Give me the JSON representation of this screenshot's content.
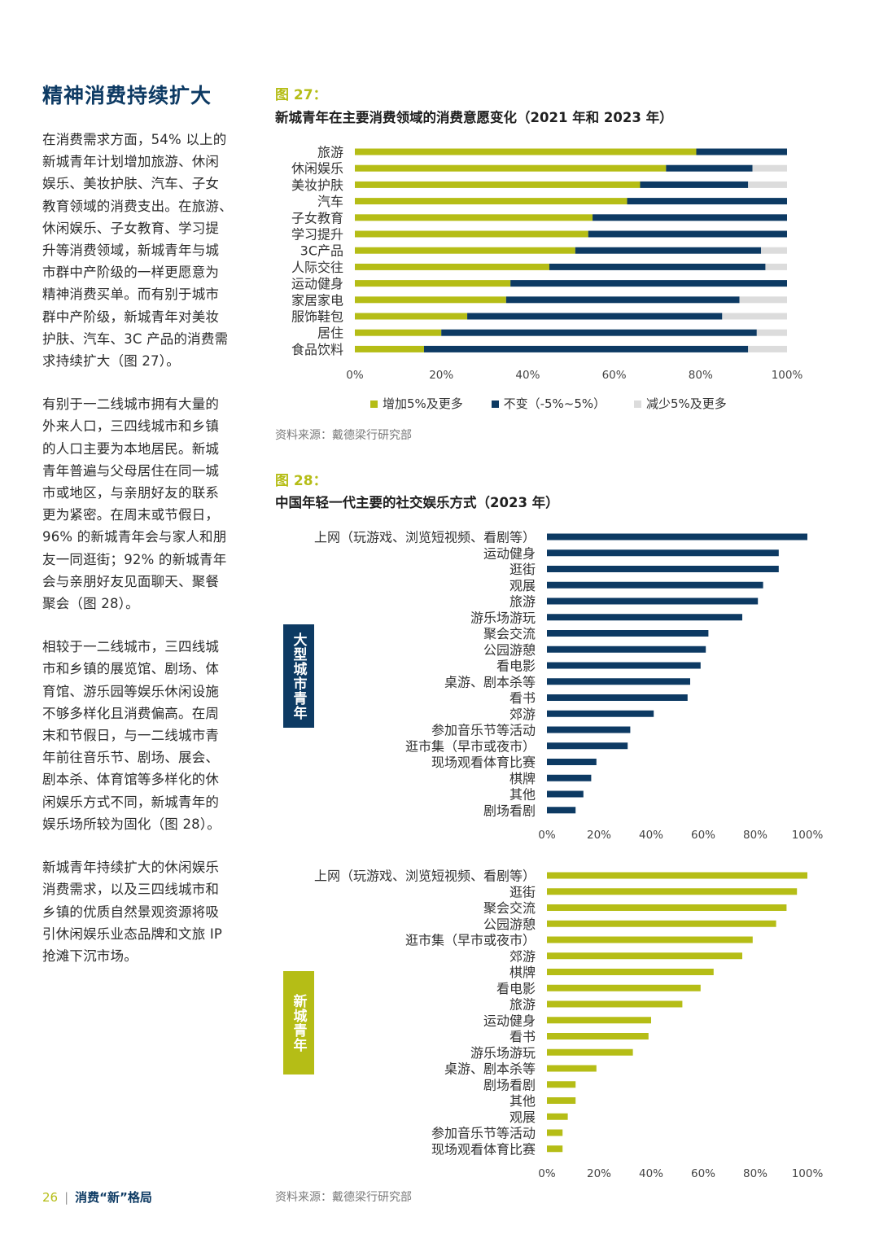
{
  "section_title": "精神消费持续扩大",
  "paragraphs": [
    "在消费需求方面，54% 以上的\n新城青年计划增加旅游、休闲\n娱乐、美妆护肤、汽车、子女\n教育领域的消费支出。在旅游、\n休闲娱乐、子女教育、学习提\n升等消费领域，新城青年与城\n市群中产阶级的一样更愿意为\n精神消费买单。而有别于城市\n群中产阶级，新城青年对美妆\n护肤、汽车、3C 产品的消费需\n求持续扩大（图 27）。",
    "有别于一二线城市拥有大量的\n外来人口，三四线城市和乡镇\n的人口主要为本地居民。新城\n青年普遍与父母居住在同一城\n市或地区，与亲朋好友的联系\n更为紧密。在周末或节假日，\n96% 的新城青年会与家人和朋\n友一同逛街；92% 的新城青年\n会与亲朋好友见面聊天、聚餐\n聚会（图 28）。",
    "相较于一二线城市，三四线城\n市和乡镇的展览馆、剧场、体\n育馆、游乐园等娱乐休闲设施\n不够多样化且消费偏高。在周\n末和节假日，与一二线城市青\n年前往音乐节、剧场、展会、\n剧本杀、体育馆等多样化的休\n闲娱乐方式不同，新城青年的\n娱乐场所较为固化（图 28）。",
    "新城青年持续扩大的休闲娱乐\n消费需求，以及三四线城市和\n乡镇的优质自然景观资源将吸\n引休闲娱乐业态品牌和文旅 IP\n抢滩下沉市场。"
  ],
  "figure27": {
    "number": "图 27：",
    "title": "新城青年在主要消费领域的消费意愿变化（2021 年和 2023 年）",
    "source": "资料来源：戴德梁行研究部"
  },
  "figure28": {
    "number": "图 28：",
    "title": "中国年轻一代主要的社交娱乐方式（2023 年）",
    "source": "资料来源：戴德梁行研究部",
    "tag_big": "大型城市青年",
    "tag_new": "新城青年"
  },
  "footer": {
    "page": "26",
    "sep": "|",
    "title": "消费“新”格局"
  },
  "colors": {
    "green": "#b5bd16",
    "navy": "#0d3a63",
    "grey": "#dcdcdc"
  },
  "chart_data": [
    {
      "type": "bar",
      "orientation": "horizontal",
      "stacked": true,
      "categories": [
        "旅游",
        "休闲娱乐",
        "美妆护肤",
        "汽车",
        "子女教育",
        "学习提升",
        "3C产品",
        "人际交往",
        "运动健身",
        "家居家电",
        "服饰鞋包",
        "居住",
        "食品饮料"
      ],
      "series": [
        {
          "name": "增加5%及更多",
          "color": "#b5bd16",
          "values": [
            79,
            72,
            66,
            63,
            55,
            54,
            51,
            45,
            36,
            35,
            26,
            20,
            16
          ]
        },
        {
          "name": "不变（-5%~5%）",
          "color": "#0d3a63",
          "values": [
            21,
            20,
            25,
            37,
            45,
            46,
            43,
            50,
            64,
            54,
            59,
            73,
            75
          ]
        },
        {
          "name": "减少5%及更多",
          "color": "#dcdcdc",
          "values": [
            0,
            8,
            9,
            0,
            0,
            0,
            6,
            5,
            0,
            11,
            15,
            7,
            9
          ]
        }
      ],
      "xlim": [
        0,
        100
      ],
      "xticks": [
        "0%",
        "20%",
        "40%",
        "60%",
        "80%",
        "100%"
      ],
      "legend_position": "bottom"
    },
    {
      "type": "bar",
      "orientation": "horizontal",
      "group": "大型城市青年",
      "color": "#0d3a63",
      "categories": [
        "上网（玩游戏、浏览短视频、看剧等）",
        "运动健身",
        "逛街",
        "观展",
        "旅游",
        "游乐场游玩",
        "聚会交流",
        "公园游憩",
        "看电影",
        "桌游、剧本杀等",
        "看书",
        "郊游",
        "参加音乐节等活动",
        "逛市集（早市或夜市）",
        "现场观看体育比赛",
        "棋牌",
        "其他",
        "剧场看剧"
      ],
      "values": [
        100,
        89,
        89,
        83,
        81,
        75,
        62,
        61,
        59,
        55,
        54,
        41,
        32,
        31,
        19,
        17,
        14,
        11
      ],
      "xlim": [
        0,
        100
      ],
      "xticks": [
        "0%",
        "20%",
        "40%",
        "60%",
        "80%",
        "100%"
      ]
    },
    {
      "type": "bar",
      "orientation": "horizontal",
      "group": "新城青年",
      "color": "#b5bd16",
      "categories": [
        "上网（玩游戏、浏览短视频、看剧等）",
        "逛街",
        "聚会交流",
        "公园游憩",
        "逛市集（早市或夜市）",
        "郊游",
        "棋牌",
        "看电影",
        "旅游",
        "运动健身",
        "看书",
        "游乐场游玩",
        "桌游、剧本杀等",
        "剧场看剧",
        "其他",
        "观展",
        "参加音乐节等活动",
        "现场观看体育比赛"
      ],
      "values": [
        100,
        96,
        92,
        88,
        79,
        75,
        64,
        59,
        52,
        40,
        39,
        33,
        19,
        11,
        11,
        8,
        6,
        6
      ],
      "xlim": [
        0,
        100
      ],
      "xticks": [
        "0%",
        "20%",
        "40%",
        "60%",
        "80%",
        "100%"
      ]
    }
  ]
}
